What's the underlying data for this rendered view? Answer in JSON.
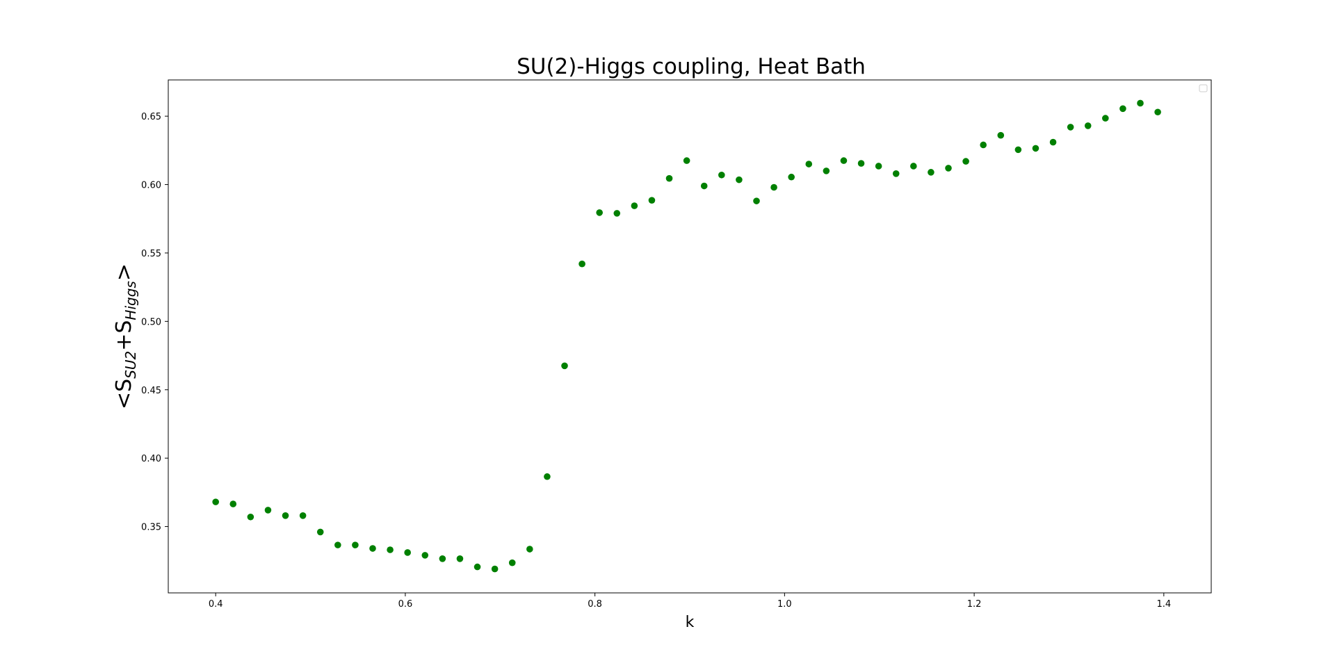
{
  "chart_data": {
    "type": "scatter",
    "title": "SU(2)-Higgs coupling, Heat Bath",
    "xlabel": "k",
    "ylabel": {
      "prefix": "<S",
      "sub1": "SU2",
      "mid": "+S",
      "sub2": "Higgs",
      "suffix": ">"
    },
    "xlim": [
      0.35,
      1.45
    ],
    "ylim": [
      0.3015,
      0.6765
    ],
    "x_ticks": [
      {
        "value": 0.4,
        "label": "0.4"
      },
      {
        "value": 0.6,
        "label": "0.6"
      },
      {
        "value": 0.8,
        "label": "0.8"
      },
      {
        "value": 1.0,
        "label": "1.0"
      },
      {
        "value": 1.2,
        "label": "1.2"
      },
      {
        "value": 1.4,
        "label": "1.4"
      }
    ],
    "y_ticks": [
      {
        "value": 0.35,
        "label": "0.35"
      },
      {
        "value": 0.4,
        "label": "0.40"
      },
      {
        "value": 0.45,
        "label": "0.45"
      },
      {
        "value": 0.5,
        "label": "0.50"
      },
      {
        "value": 0.55,
        "label": "0.55"
      },
      {
        "value": 0.6,
        "label": "0.60"
      },
      {
        "value": 0.65,
        "label": "0.65"
      }
    ],
    "grid": false,
    "legend": "top-right",
    "color": "#008000",
    "series": [
      {
        "x": [
          0.4,
          0.4184,
          0.4368,
          0.4552,
          0.4736,
          0.492,
          0.5104,
          0.5288,
          0.5472,
          0.5656,
          0.584,
          0.6024,
          0.6208,
          0.6392,
          0.6576,
          0.676,
          0.6944,
          0.7128,
          0.7312,
          0.7496,
          0.768,
          0.7864,
          0.8048,
          0.8232,
          0.8416,
          0.86,
          0.8784,
          0.8968,
          0.9152,
          0.9336,
          0.952,
          0.9704,
          0.9888,
          1.0072,
          1.0256,
          1.044,
          1.0624,
          1.0808,
          1.0992,
          1.1176,
          1.136,
          1.1544,
          1.1728,
          1.1912,
          1.2096,
          1.228,
          1.2464,
          1.2648,
          1.2832,
          1.3016,
          1.32,
          1.3384,
          1.3568,
          1.3752,
          1.3936
        ],
        "y": [
          0.368,
          0.3665,
          0.357,
          0.362,
          0.358,
          0.358,
          0.346,
          0.3365,
          0.3365,
          0.334,
          0.333,
          0.331,
          0.329,
          0.3265,
          0.3265,
          0.3205,
          0.319,
          0.3235,
          0.3335,
          0.3865,
          0.4675,
          0.542,
          0.5795,
          0.579,
          0.5845,
          0.5885,
          0.6045,
          0.6175,
          0.599,
          0.607,
          0.6035,
          0.588,
          0.598,
          0.6055,
          0.615,
          0.61,
          0.6175,
          0.6155,
          0.6135,
          0.608,
          0.6135,
          0.609,
          0.612,
          0.617,
          0.629,
          0.636,
          0.6255,
          0.6265,
          0.631,
          0.642,
          0.643,
          0.6485,
          0.6555,
          0.6595,
          0.653
        ]
      }
    ]
  }
}
